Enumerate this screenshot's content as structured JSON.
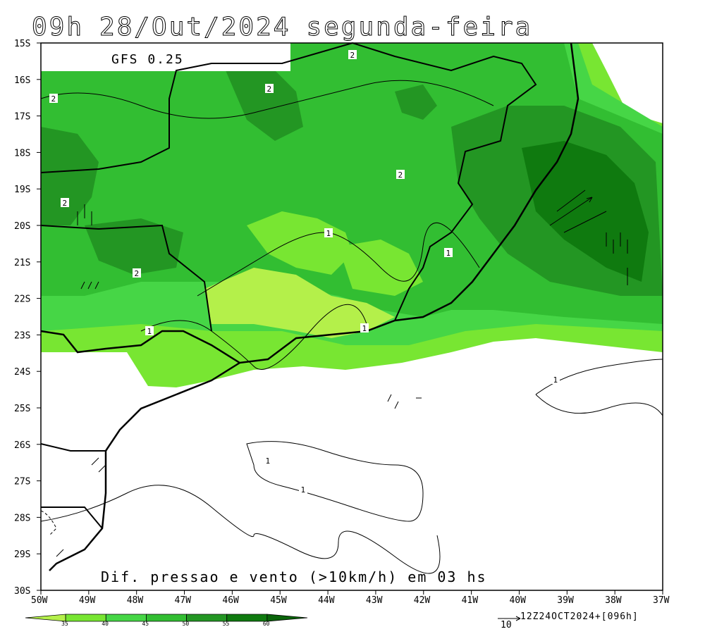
{
  "title": {
    "hour": "09h",
    "date": "28/Out/2024",
    "weekday": "segunda-feira"
  },
  "model_label": "GFS 0.25",
  "subtitle": "Dif. pressao e vento (>10km/h) em 03 hs",
  "run_label": "12Z24OCT2024+[096h]",
  "vector_scale_label": "10",
  "lat_labels": [
    "15S",
    "16S",
    "17S",
    "18S",
    "19S",
    "20S",
    "21S",
    "22S",
    "23S",
    "24S",
    "25S",
    "26S",
    "27S",
    "28S",
    "29S",
    "30S"
  ],
  "lon_labels": [
    "50W",
    "49W",
    "48W",
    "47W",
    "46W",
    "45W",
    "44W",
    "43W",
    "42W",
    "41W",
    "40W",
    "39W",
    "38W",
    "37W"
  ],
  "colorbar": {
    "ticks": [
      "35",
      "40",
      "45",
      "50",
      "55",
      "60"
    ],
    "colors": [
      "#b4f04a",
      "#78e632",
      "#46d646",
      "#32be32",
      "#239623",
      "#0f7a0f",
      "#0a640a"
    ]
  },
  "contour_labels": [
    "2",
    "2",
    "2",
    "2",
    "2",
    "2",
    "1",
    "1",
    "1",
    "1",
    "1",
    "1",
    "1"
  ]
}
